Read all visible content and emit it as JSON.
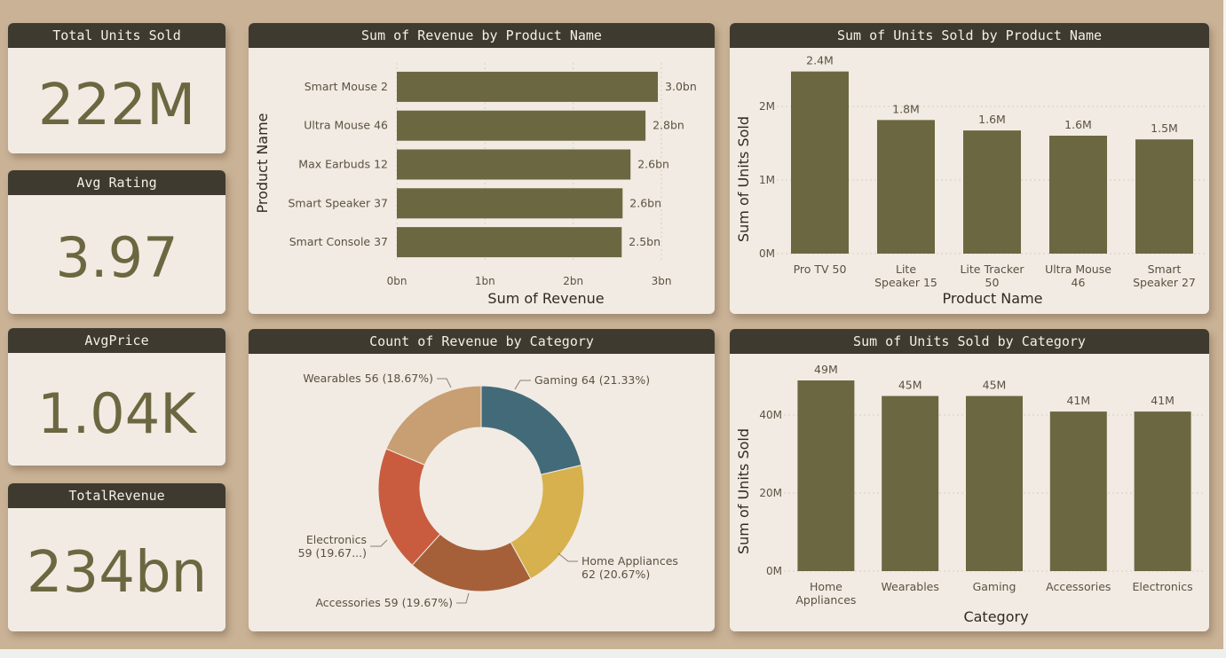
{
  "colors": {
    "bar": "#6b6740",
    "header": "#3f3a2f",
    "card": "#f1ebe3",
    "bg": "#c9b296",
    "text": "#5a5240"
  },
  "kpis": [
    {
      "title": "Total Units Sold",
      "value": "222M"
    },
    {
      "title": "Avg Rating",
      "value": "3.97"
    },
    {
      "title": "AvgPrice",
      "value": "1.04K"
    },
    {
      "title": "TotalRevenue",
      "value": "234bn"
    }
  ],
  "chart_data": [
    {
      "type": "bar",
      "orientation": "horizontal",
      "title": "Sum of Revenue by Product Name",
      "xlabel": "Sum of Revenue",
      "ylabel": "Product Name",
      "categories": [
        "Smart Mouse 2",
        "Ultra Mouse 46",
        "Max Earbuds 12",
        "Smart Speaker 37",
        "Smart Console 37"
      ],
      "values": [
        2.96,
        2.82,
        2.65,
        2.56,
        2.55
      ],
      "data_labels": [
        "3.0bn",
        "2.8bn",
        "2.6bn",
        "2.6bn",
        "2.5bn"
      ],
      "ticks": [
        "0bn",
        "1bn",
        "2bn",
        "3bn"
      ],
      "xlim": [
        0,
        3
      ]
    },
    {
      "type": "bar",
      "title": "Sum of Units Sold by Product Name",
      "xlabel": "Product Name",
      "ylabel": "Sum of Units Sold",
      "categories": [
        "Pro TV 50",
        "Lite Speaker 15",
        "Lite Tracker 50",
        "Ultra Mouse 46",
        "Smart Speaker 27"
      ],
      "category_lines": [
        [
          "Pro TV 50"
        ],
        [
          "Lite",
          "Speaker 15"
        ],
        [
          "Lite Tracker",
          "50"
        ],
        [
          "Ultra Mouse",
          "46"
        ],
        [
          "Smart",
          "Speaker 27"
        ]
      ],
      "values": [
        2.44,
        1.79,
        1.65,
        1.58,
        1.53
      ],
      "data_labels": [
        "2.4M",
        "1.8M",
        "1.6M",
        "1.6M",
        "1.5M"
      ],
      "ticks": [
        "0M",
        "1M",
        "2M"
      ],
      "ylim": [
        0,
        2.4
      ]
    },
    {
      "type": "pie",
      "donut": true,
      "title": "Count of Revenue by Category",
      "slices": [
        {
          "name": "Gaming",
          "value": 64,
          "label": "Gaming 64 (21.33%)",
          "color": "#436a79"
        },
        {
          "name": "Home Appliances",
          "value": 62,
          "label": "Home Appliances 62 (20.67%)",
          "color": "#d6b14d"
        },
        {
          "name": "Accessories",
          "value": 59,
          "label": "Accessories 59 (19.67%)",
          "color": "#a5603a"
        },
        {
          "name": "Electronics",
          "value": 59,
          "label": "Electronics 59 (19.67...)",
          "color": "#c95c3e"
        },
        {
          "name": "Wearables",
          "value": 56,
          "label": "Wearables 56 (18.67%)",
          "color": "#c89e73"
        }
      ]
    },
    {
      "type": "bar",
      "title": "Sum of Units Sold by Category",
      "xlabel": "Category",
      "ylabel": "Sum of Units Sold",
      "categories": [
        "Home Appliances",
        "Wearables",
        "Gaming",
        "Accessories",
        "Electronics"
      ],
      "category_lines": [
        [
          "Home",
          "Appliances"
        ],
        [
          "Wearables"
        ],
        [
          "Gaming"
        ],
        [
          "Accessories"
        ],
        [
          "Electronics"
        ]
      ],
      "values": [
        49,
        45,
        45,
        41,
        41
      ],
      "data_labels": [
        "49M",
        "45M",
        "45M",
        "41M",
        "41M"
      ],
      "ticks": [
        "0M",
        "20M",
        "40M"
      ],
      "ylim": [
        0,
        49
      ]
    }
  ]
}
